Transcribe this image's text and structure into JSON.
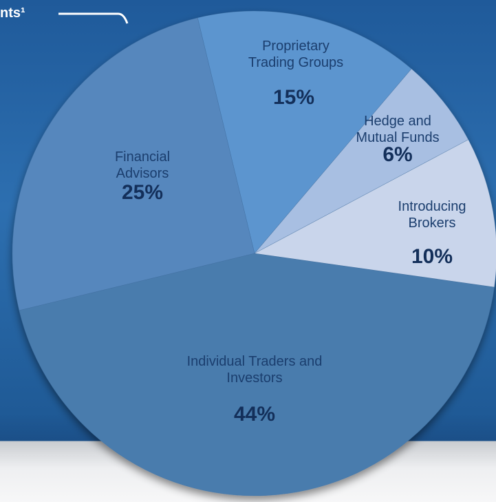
{
  "chart_data": {
    "type": "pie",
    "title": "nts¹",
    "categories": [
      "Proprietary Trading Groups",
      "Hedge and Mutual Funds",
      "Introducing Brokers",
      "Individual Traders and Investors",
      "Financial Advisors"
    ],
    "values": [
      15,
      6,
      10,
      44,
      25
    ],
    "value_labels": [
      "15%",
      "6%",
      "10%",
      "44%",
      "25%"
    ],
    "colors": [
      "#5c95cf",
      "#a8bfe2",
      "#c9d5eb",
      "#4a7cad",
      "#5687bd"
    ]
  }
}
